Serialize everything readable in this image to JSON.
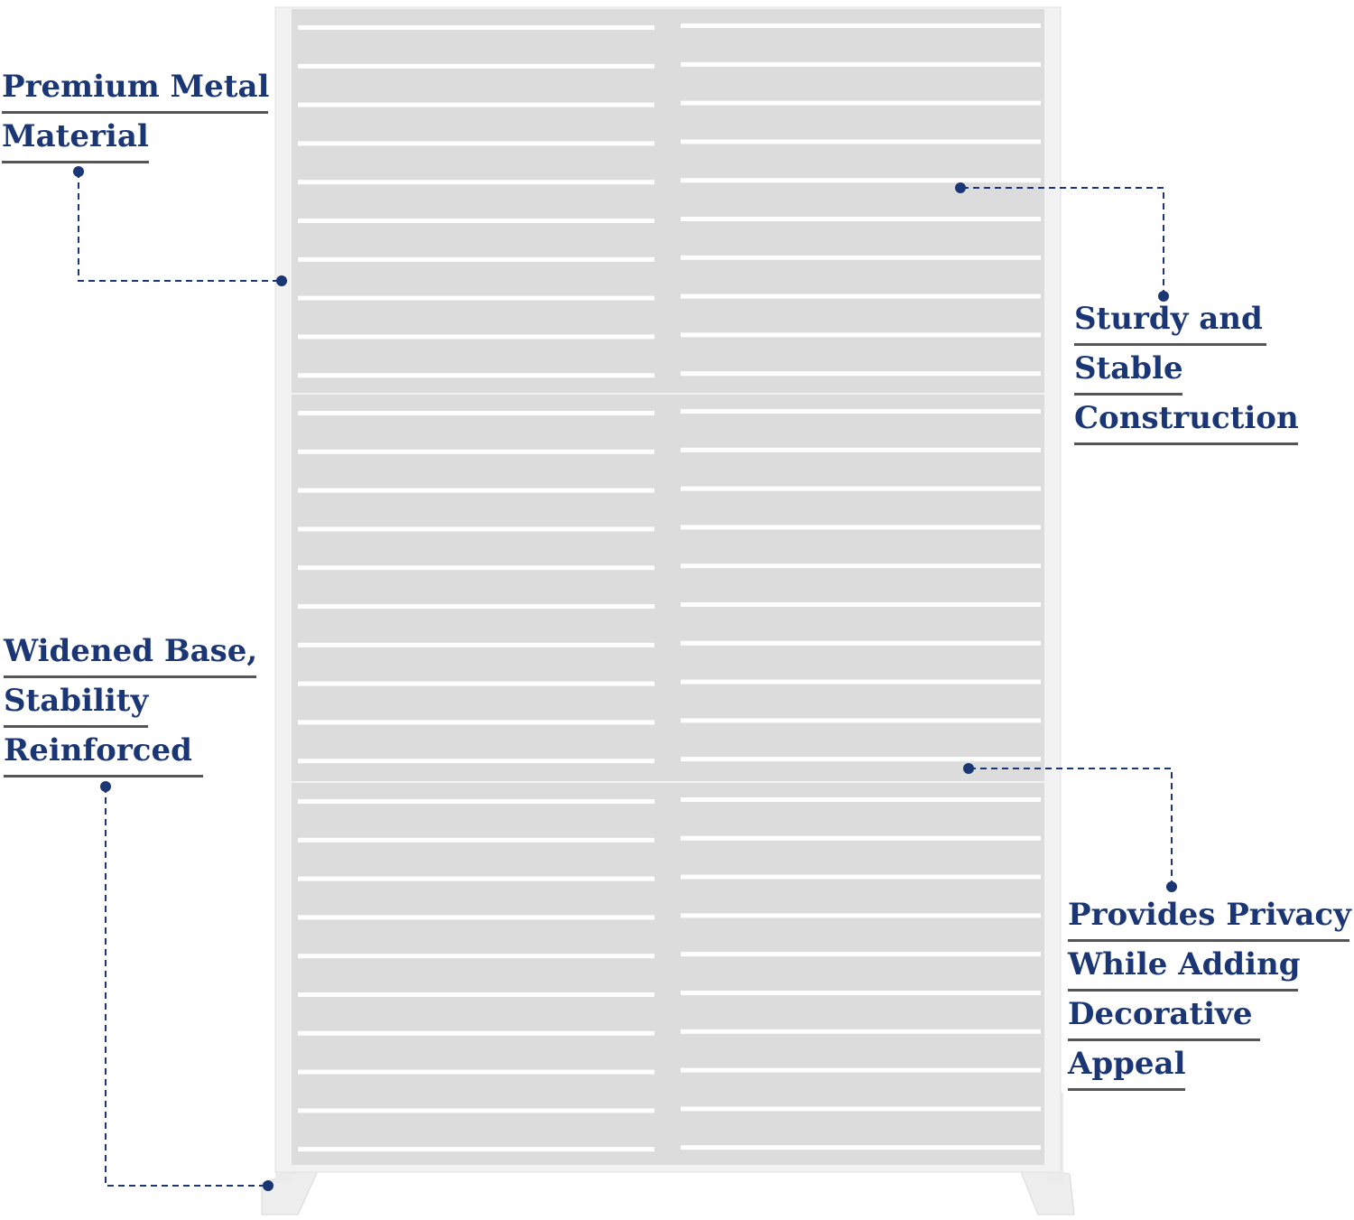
{
  "colors": {
    "label_text": "#1b3675",
    "underline": "#555555",
    "callout": "#1b3675",
    "panel": "#dcdcdc",
    "frame": "#f2f2f2",
    "slat": "#ffffff"
  },
  "callouts": [
    {
      "lines": [
        "Premium Metal",
        "Material"
      ]
    },
    {
      "lines": [
        "Sturdy and",
        "Stable",
        "Construction"
      ]
    },
    {
      "lines": [
        "Widened Base,",
        "Stability",
        "Reinforced"
      ]
    },
    {
      "lines": [
        "Provides Privacy",
        "While Adding",
        "Decorative",
        "Appeal"
      ]
    }
  ],
  "product": {
    "panel_sections": 3,
    "slats_per_section": 10,
    "columns": 2
  }
}
